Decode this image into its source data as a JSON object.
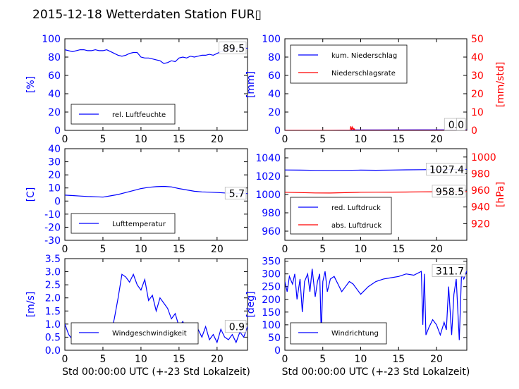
{
  "page": {
    "title": "2015-12-18 Wetterdaten Station FUR▯"
  },
  "colors": {
    "primary": "#0000ff",
    "secondary": "#ff0000",
    "text": "#000000"
  },
  "chart_data": [
    {
      "id": "humidity",
      "type": "line",
      "xlim": [
        0,
        24
      ],
      "ylim": [
        0,
        100
      ],
      "xticks": [
        0,
        5,
        10,
        15,
        20
      ],
      "yticks": [
        0,
        20,
        40,
        60,
        80,
        100
      ],
      "ylabel": "[%]",
      "ylabel_color": "#0000ff",
      "xlabel": "",
      "current_value": "89.5",
      "legend": {
        "position": "lower-left",
        "entries": [
          {
            "label": "rel. Luftfeuchte",
            "color": "#0000ff"
          }
        ]
      },
      "series": [
        {
          "name": "rel. Luftfeuchte",
          "axis": "left",
          "color": "#0000ff",
          "x": [
            0,
            0.5,
            1,
            1.5,
            2,
            2.5,
            3,
            3.5,
            4,
            4.5,
            5,
            5.5,
            6,
            6.5,
            7,
            7.5,
            8,
            8.5,
            9,
            9.5,
            10,
            10.5,
            11,
            11.5,
            12,
            12.5,
            13,
            13.5,
            14,
            14.5,
            15,
            15.5,
            16,
            16.5,
            17,
            17.5,
            18,
            18.5,
            19,
            19.5,
            20,
            20.5,
            21,
            21.5,
            22,
            22.5,
            23,
            23.5,
            24
          ],
          "values": [
            88,
            87,
            86,
            87,
            88,
            88,
            87,
            87,
            88,
            87,
            87,
            88,
            86,
            84,
            82,
            81,
            82,
            84,
            85,
            85,
            80,
            79,
            79,
            78,
            77,
            76,
            73,
            74,
            76,
            75,
            79,
            80,
            79,
            81,
            80,
            81,
            82,
            82,
            83,
            82,
            84,
            86,
            87,
            88,
            88,
            89,
            89,
            90,
            89.5
          ]
        }
      ]
    },
    {
      "id": "precipitation",
      "type": "line",
      "xlim": [
        0,
        24
      ],
      "ylim": [
        0,
        100
      ],
      "y2lim": [
        0,
        50
      ],
      "xticks": [
        0,
        5,
        10,
        15,
        20
      ],
      "yticks": [
        0,
        20,
        40,
        60,
        80,
        100
      ],
      "y2ticks": [
        0,
        10,
        20,
        30,
        40,
        50
      ],
      "ylabel": "[mm]",
      "ylabel_color": "#0000ff",
      "y2label": "[mm/std]",
      "y2label_color": "#ff0000",
      "xlabel": "",
      "current_value": "0.0",
      "current_value2": "0",
      "legend": {
        "position": "top-left",
        "entries": [
          {
            "label": "kum. Niederschlag",
            "color": "#0000ff"
          },
          {
            "label": "Niederschlagsrate",
            "color": "#ff0000"
          }
        ]
      },
      "series": [
        {
          "name": "kum. Niederschlag",
          "axis": "left",
          "color": "#0000ff",
          "x": [
            0,
            6,
            8.7,
            9,
            12,
            18,
            24
          ],
          "values": [
            0,
            0,
            0.2,
            0.5,
            0.5,
            0.6,
            0.6
          ]
        },
        {
          "name": "Niederschlagsrate",
          "axis": "right",
          "color": "#ff0000",
          "x": [
            0,
            8.6,
            8.7,
            8.8,
            8.9,
            9.0,
            9.1,
            9.3,
            12,
            18,
            24
          ],
          "values": [
            0,
            0,
            2.2,
            0.5,
            1.8,
            0.3,
            1.0,
            0,
            0,
            0,
            0
          ]
        }
      ]
    },
    {
      "id": "temperature",
      "type": "line",
      "xlim": [
        0,
        24
      ],
      "ylim": [
        -30,
        40
      ],
      "xticks": [
        0,
        5,
        10,
        15,
        20
      ],
      "yticks": [
        -30,
        -20,
        -10,
        0,
        10,
        20,
        30,
        40
      ],
      "ylabel": "[C]",
      "ylabel_color": "#0000ff",
      "xlabel": "",
      "current_value": "5.7",
      "legend": {
        "position": "lower-left",
        "entries": [
          {
            "label": "Lufttemperatur",
            "color": "#0000ff"
          }
        ]
      },
      "series": [
        {
          "name": "Lufttemperatur",
          "axis": "left",
          "color": "#0000ff",
          "x": [
            0,
            1,
            2,
            3,
            4,
            5,
            6,
            7,
            8,
            9,
            10,
            11,
            12,
            13,
            14,
            15,
            16,
            17,
            18,
            19,
            20,
            21,
            22,
            23,
            24
          ],
          "values": [
            4.5,
            4.2,
            3.8,
            3.5,
            3.3,
            3.0,
            4.0,
            5.0,
            6.5,
            8.0,
            9.5,
            10.5,
            11.0,
            11.2,
            10.8,
            9.5,
            8.5,
            7.5,
            7.0,
            6.8,
            6.5,
            6.2,
            6.0,
            5.8,
            5.7
          ]
        }
      ]
    },
    {
      "id": "pressure",
      "type": "line",
      "xlim": [
        0,
        24
      ],
      "ylim": [
        950,
        1050
      ],
      "y2lim": [
        900,
        1010
      ],
      "xticks": [
        0,
        5,
        10,
        15,
        20
      ],
      "yticks": [
        960,
        980,
        1000,
        1020,
        1040
      ],
      "y2ticks": [
        920,
        940,
        960,
        980,
        1000
      ],
      "ylabel": "",
      "y2label": "[hPa]",
      "y2label_color": "#ff0000",
      "xlabel": "",
      "current_value": "1027.4",
      "current_value2": "958.5",
      "legend": {
        "position": "lower-left",
        "entries": [
          {
            "label": "red. Luftdruck",
            "color": "#0000ff"
          },
          {
            "label": "abs. Luftdruck",
            "color": "#ff0000"
          }
        ]
      },
      "series": [
        {
          "name": "red. Luftdruck",
          "axis": "left",
          "color": "#0000ff",
          "x": [
            0,
            2,
            4,
            6,
            8,
            10,
            12,
            14,
            16,
            18,
            20,
            22,
            24
          ],
          "values": [
            1026.8,
            1026.6,
            1026.4,
            1026.3,
            1026.4,
            1026.6,
            1026.5,
            1026.7,
            1026.9,
            1027.1,
            1027.2,
            1027.3,
            1027.4
          ]
        },
        {
          "name": "abs. Luftdruck",
          "axis": "right",
          "color": "#ff0000",
          "x": [
            0,
            2,
            4,
            6,
            8,
            10,
            12,
            14,
            16,
            18,
            20,
            22,
            24
          ],
          "values": [
            957.7,
            957.3,
            956.9,
            956.8,
            957.2,
            957.7,
            957.8,
            957.9,
            958.0,
            958.2,
            958.3,
            958.4,
            958.5
          ]
        }
      ]
    },
    {
      "id": "windspeed",
      "type": "line",
      "xlim": [
        0,
        24
      ],
      "ylim": [
        0,
        3.5
      ],
      "xticks": [
        0,
        5,
        10,
        15,
        20
      ],
      "yticks": [
        0.0,
        0.5,
        1.0,
        1.5,
        2.0,
        2.5,
        3.0,
        3.5
      ],
      "ylabel": "[m/s]",
      "ylabel_color": "#0000ff",
      "xlabel": "Std 00:00:00 UTC (+-23 Std Lokalzeit)",
      "current_value": "0.9",
      "legend": {
        "position": "lower-left",
        "entries": [
          {
            "label": "Windgeschwindigkeit",
            "color": "#0000ff"
          }
        ]
      },
      "series": [
        {
          "name": "Windgeschwindigkeit",
          "axis": "left",
          "color": "#0000ff",
          "x": [
            0,
            0.5,
            1,
            1.5,
            2,
            2.5,
            3,
            3.5,
            4,
            4.5,
            5,
            5.5,
            6,
            6.5,
            7,
            7.5,
            8,
            8.5,
            9,
            9.5,
            10,
            10.5,
            11,
            11.5,
            12,
            12.5,
            13,
            13.5,
            14,
            14.5,
            15,
            15.5,
            16,
            16.5,
            17,
            17.5,
            18,
            18.5,
            19,
            19.5,
            20,
            20.5,
            21,
            21.5,
            22,
            22.5,
            23,
            23.5,
            24
          ],
          "values": [
            1.0,
            0.6,
            0.4,
            0.8,
            0.5,
            0.9,
            0.4,
            0.7,
            0.5,
            0.8,
            0.4,
            0.7,
            0.6,
            1.2,
            2.0,
            2.9,
            2.8,
            2.6,
            2.9,
            2.5,
            2.3,
            2.7,
            1.9,
            2.1,
            1.5,
            2.0,
            1.8,
            1.6,
            1.2,
            1.4,
            0.9,
            1.1,
            0.7,
            1.0,
            0.6,
            0.8,
            0.5,
            0.9,
            0.4,
            0.6,
            0.3,
            0.8,
            0.5,
            0.4,
            0.6,
            0.3,
            0.7,
            0.5,
            0.9
          ]
        }
      ]
    },
    {
      "id": "winddirection",
      "type": "line",
      "xlim": [
        0,
        24
      ],
      "ylim": [
        0,
        360
      ],
      "xticks": [
        0,
        5,
        10,
        15,
        20
      ],
      "yticks": [
        0,
        50,
        100,
        150,
        200,
        250,
        300,
        350
      ],
      "ylabel": "[deg]",
      "ylabel_color": "#0000ff",
      "xlabel": "Std 00:00:00 UTC (+-23 Std Lokalzeit)",
      "current_value": "311.7",
      "legend": {
        "position": "lower-left",
        "entries": [
          {
            "label": "Windrichtung",
            "color": "#0000ff"
          }
        ]
      },
      "series": [
        {
          "name": "Windrichtung",
          "axis": "left",
          "color": "#0000ff",
          "x": [
            0,
            0.3,
            0.6,
            1,
            1.3,
            1.6,
            2,
            2.3,
            2.6,
            3,
            3.3,
            3.6,
            4,
            4.3,
            4.6,
            4.8,
            5,
            5.3,
            5.6,
            6,
            6.5,
            7,
            7.5,
            8,
            8.5,
            9,
            9.5,
            10,
            11,
            12,
            13,
            14,
            15,
            16,
            17,
            18,
            18.2,
            18.4,
            18.6,
            19,
            19.5,
            20,
            20.5,
            21,
            21.3,
            21.6,
            22,
            22.3,
            22.6,
            23,
            23.3,
            23.6,
            24
          ],
          "values": [
            270,
            230,
            290,
            260,
            300,
            200,
            280,
            150,
            270,
            300,
            230,
            320,
            210,
            270,
            300,
            60,
            270,
            310,
            230,
            280,
            290,
            260,
            230,
            250,
            270,
            260,
            240,
            220,
            250,
            270,
            280,
            285,
            290,
            300,
            295,
            310,
            100,
            300,
            60,
            90,
            120,
            100,
            60,
            110,
            80,
            250,
            60,
            220,
            280,
            40,
            300,
            280,
            311.7
          ]
        }
      ]
    }
  ]
}
